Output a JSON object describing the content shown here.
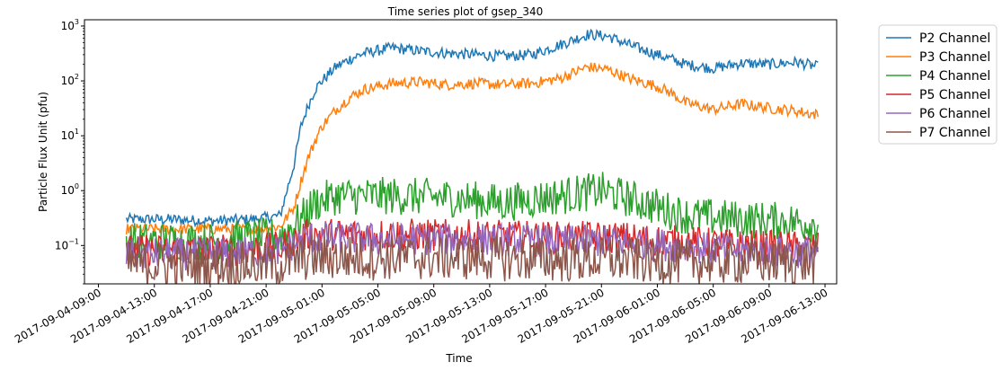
{
  "chart_data": {
    "type": "line",
    "title": "Time series plot of gsep_340",
    "xlabel": "Time",
    "ylabel": "Particle Flux Unit (pfu)",
    "yscale": "log",
    "ylim": [
      0.02,
      1300
    ],
    "xlim": [
      "2017-09-04T08:00",
      "2017-09-06T13:50"
    ],
    "x_tick_labels": [
      "2017-09-04-09:00",
      "2017-09-04-13:00",
      "2017-09-04-17:00",
      "2017-09-04-21:00",
      "2017-09-05-01:00",
      "2017-09-05-05:00",
      "2017-09-05-09:00",
      "2017-09-05-13:00",
      "2017-09-05-17:00",
      "2017-09-05-21:00",
      "2017-09-06-01:00",
      "2017-09-06-05:00",
      "2017-09-06-09:00",
      "2017-09-06-13:00"
    ],
    "y_ticks": [
      {
        "value": 0.1,
        "base": "10",
        "exp": "−1"
      },
      {
        "value": 1,
        "base": "10",
        "exp": "0"
      },
      {
        "value": 10,
        "base": "10",
        "exp": "1"
      },
      {
        "value": 100,
        "base": "10",
        "exp": "2"
      },
      {
        "value": 1000,
        "base": "10",
        "exp": "3"
      }
    ],
    "grid": false,
    "legend_position": "outside-right",
    "series": [
      {
        "name": "P2 Channel",
        "color": "#1f77b4",
        "x": [
          "2017-09-04T11:00",
          "2017-09-04T14:00",
          "2017-09-04T17:00",
          "2017-09-04T20:00",
          "2017-09-04T22:00",
          "2017-09-04T23:00",
          "2017-09-04T23:30",
          "2017-09-05T00:00",
          "2017-09-05T00:30",
          "2017-09-05T01:00",
          "2017-09-05T02:00",
          "2017-09-05T03:00",
          "2017-09-05T04:00",
          "2017-09-05T06:00",
          "2017-09-05T08:00",
          "2017-09-05T10:00",
          "2017-09-05T12:00",
          "2017-09-05T14:00",
          "2017-09-05T16:00",
          "2017-09-05T18:00",
          "2017-09-05T20:00",
          "2017-09-05T21:30",
          "2017-09-05T23:00",
          "2017-09-06T01:00",
          "2017-09-06T02:00",
          "2017-09-06T03:00",
          "2017-09-06T05:00",
          "2017-09-06T07:00",
          "2017-09-06T09:00",
          "2017-09-06T11:00",
          "2017-09-06T12:30"
        ],
        "values": [
          0.3,
          0.3,
          0.28,
          0.3,
          0.35,
          3,
          15,
          35,
          70,
          100,
          180,
          250,
          320,
          400,
          350,
          320,
          300,
          280,
          300,
          450,
          700,
          650,
          450,
          300,
          250,
          200,
          170,
          210,
          200,
          220,
          180
        ]
      },
      {
        "name": "P3 Channel",
        "color": "#ff7f0e",
        "x": [
          "2017-09-04T11:00",
          "2017-09-04T14:00",
          "2017-09-04T17:00",
          "2017-09-04T20:00",
          "2017-09-04T22:00",
          "2017-09-04T23:00",
          "2017-09-04T23:30",
          "2017-09-05T00:00",
          "2017-09-05T00:30",
          "2017-09-05T01:00",
          "2017-09-05T02:00",
          "2017-09-05T03:00",
          "2017-09-05T04:00",
          "2017-09-05T06:00",
          "2017-09-05T08:00",
          "2017-09-05T10:00",
          "2017-09-05T12:00",
          "2017-09-05T14:00",
          "2017-09-05T16:00",
          "2017-09-05T18:00",
          "2017-09-05T20:00",
          "2017-09-05T21:30",
          "2017-09-05T23:00",
          "2017-09-06T01:00",
          "2017-09-06T02:00",
          "2017-09-06T03:00",
          "2017-09-06T05:00",
          "2017-09-06T07:00",
          "2017-09-06T09:00",
          "2017-09-06T11:00",
          "2017-09-06T12:30"
        ],
        "values": [
          0.2,
          0.2,
          0.2,
          0.2,
          0.22,
          0.5,
          1.5,
          4,
          8,
          15,
          30,
          50,
          70,
          90,
          95,
          85,
          90,
          85,
          90,
          110,
          180,
          160,
          110,
          80,
          60,
          40,
          30,
          38,
          32,
          28,
          24
        ]
      },
      {
        "name": "P4 Channel",
        "color": "#2ca02c",
        "x": [
          "2017-09-04T11:00",
          "2017-09-04T17:00",
          "2017-09-04T22:00",
          "2017-09-04T23:30",
          "2017-09-05T00:30",
          "2017-09-05T02:00",
          "2017-09-05T06:00",
          "2017-09-05T10:00",
          "2017-09-05T14:00",
          "2017-09-05T18:00",
          "2017-09-05T21:00",
          "2017-09-06T00:00",
          "2017-09-06T03:00",
          "2017-09-06T07:00",
          "2017-09-06T10:00",
          "2017-09-06T12:30"
        ],
        "values": [
          0.12,
          0.12,
          0.15,
          0.3,
          0.6,
          0.8,
          0.8,
          0.75,
          0.6,
          0.8,
          1.0,
          0.6,
          0.35,
          0.3,
          0.28,
          0.25
        ]
      },
      {
        "name": "P5 Channel",
        "color": "#d62728",
        "x": [
          "2017-09-04T11:00",
          "2017-09-04T17:00",
          "2017-09-04T22:00",
          "2017-09-05T00:00",
          "2017-09-05T06:00",
          "2017-09-05T12:00",
          "2017-09-05T18:00",
          "2017-09-05T22:00",
          "2017-09-06T02:00",
          "2017-09-06T07:00",
          "2017-09-06T12:30"
        ],
        "values": [
          0.08,
          0.08,
          0.09,
          0.16,
          0.16,
          0.15,
          0.14,
          0.14,
          0.12,
          0.1,
          0.09
        ]
      },
      {
        "name": "P6 Channel",
        "color": "#9467bd",
        "x": [
          "2017-09-04T11:00",
          "2017-09-04T17:00",
          "2017-09-04T22:00",
          "2017-09-05T00:00",
          "2017-09-05T06:00",
          "2017-09-05T12:00",
          "2017-09-05T18:00",
          "2017-09-05T22:00",
          "2017-09-06T02:00",
          "2017-09-06T07:00",
          "2017-09-06T12:30"
        ],
        "values": [
          0.07,
          0.07,
          0.08,
          0.14,
          0.13,
          0.13,
          0.12,
          0.12,
          0.1,
          0.08,
          0.075
        ]
      },
      {
        "name": "P7 Channel",
        "color": "#8c564b",
        "x": [
          "2017-09-04T11:00",
          "2017-09-04T17:00",
          "2017-09-04T22:00",
          "2017-09-05T00:00",
          "2017-09-05T06:00",
          "2017-09-05T12:00",
          "2017-09-05T18:00",
          "2017-09-05T22:00",
          "2017-09-06T02:00",
          "2017-09-06T07:00",
          "2017-09-06T12:30"
        ],
        "values": [
          0.045,
          0.045,
          0.045,
          0.06,
          0.06,
          0.06,
          0.055,
          0.055,
          0.05,
          0.05,
          0.05
        ]
      }
    ]
  }
}
